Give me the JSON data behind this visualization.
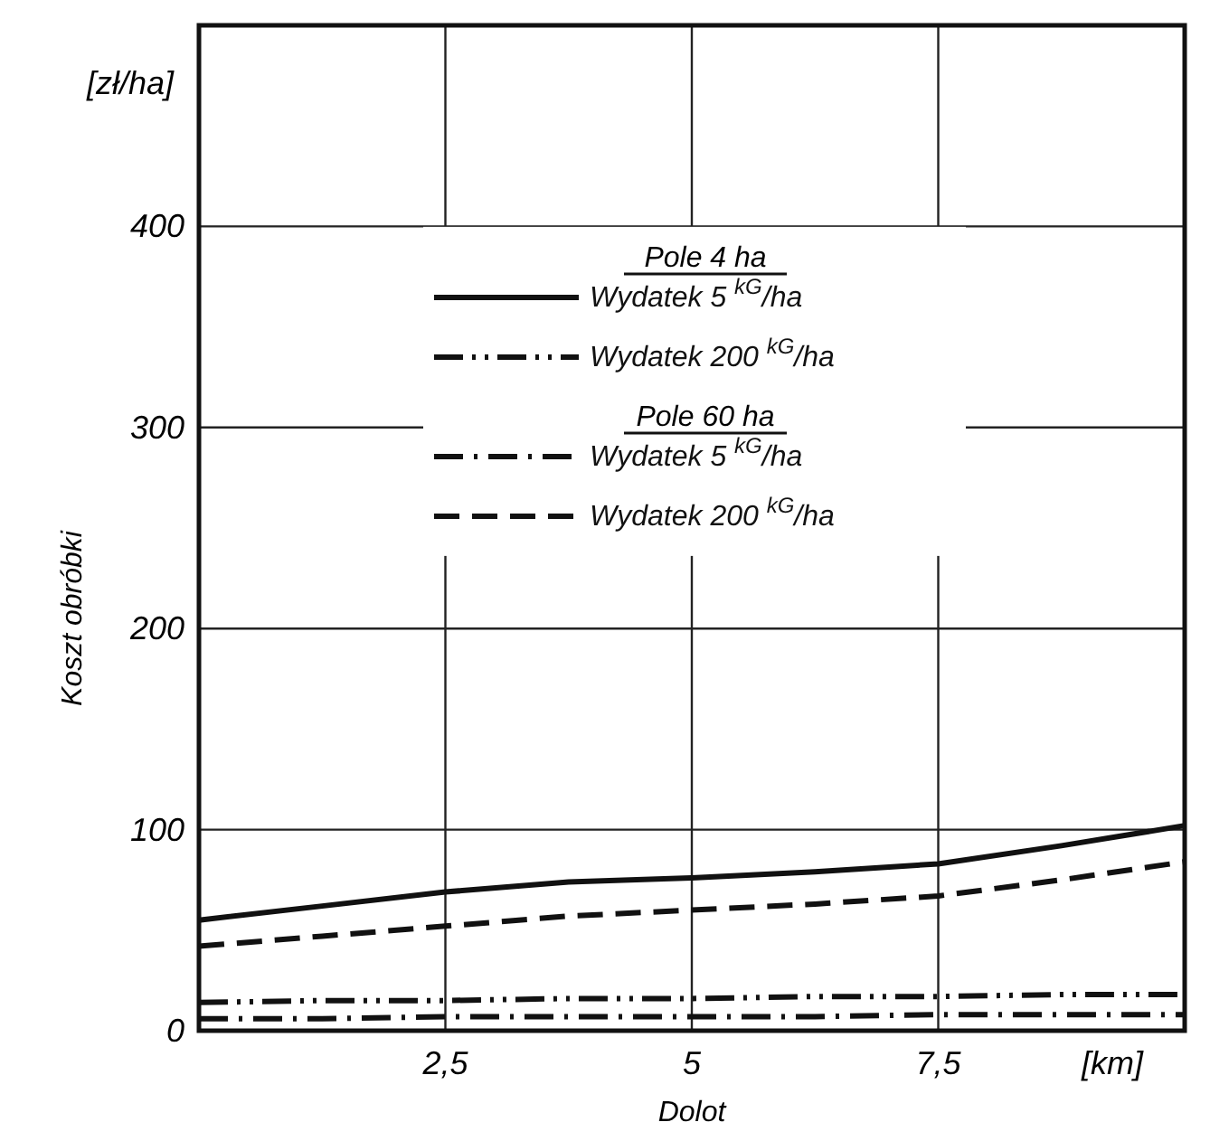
{
  "chart_data": {
    "type": "line",
    "xlabel": "Dolot",
    "ylabel": "Koszt obróbki",
    "annotations": [
      "Pole 4 ha",
      "Pole 60 ha",
      "[zł/ha]",
      "[km]"
    ],
    "x": [
      0,
      1.25,
      2.5,
      3.75,
      5,
      6.25,
      7.5,
      8.75,
      10
    ],
    "series": [
      {
        "name": "Wydatek 5 $^{kG}$/ha",
        "color": "#111111",
        "line_style": "solid",
        "values": [
          55,
          62,
          69,
          74,
          76,
          79,
          83,
          92,
          102
        ]
      },
      {
        "name": "Wydatek 200 $^{kG}$/ha",
        "color": "#111111",
        "line_style": "dashdotdot",
        "values": [
          14,
          15,
          15,
          16,
          16,
          17,
          17,
          18,
          18
        ]
      },
      {
        "name": "Wydatek 5 $^{kG}$/ha",
        "color": "#111111",
        "line_style": "dashdot",
        "values": [
          6,
          6,
          7,
          7,
          7,
          7,
          8,
          8,
          8
        ]
      },
      {
        "name": "Wydatek 200 $^{kG}$/ha",
        "color": "#111111",
        "line_style": "dashed",
        "values": [
          42,
          47,
          52,
          57,
          60,
          63,
          67,
          75,
          84
        ]
      }
    ],
    "xlim": [
      0,
      10
    ],
    "xticks": [
      {
        "value": 2.5,
        "label": "2,5"
      },
      5,
      {
        "value": 7.5,
        "label": "7,5"
      }
    ],
    "ylim": [
      0,
      500
    ],
    "yticks": [
      0,
      100,
      200,
      300,
      400
    ],
    "grid": true,
    "legend": "top"
  }
}
